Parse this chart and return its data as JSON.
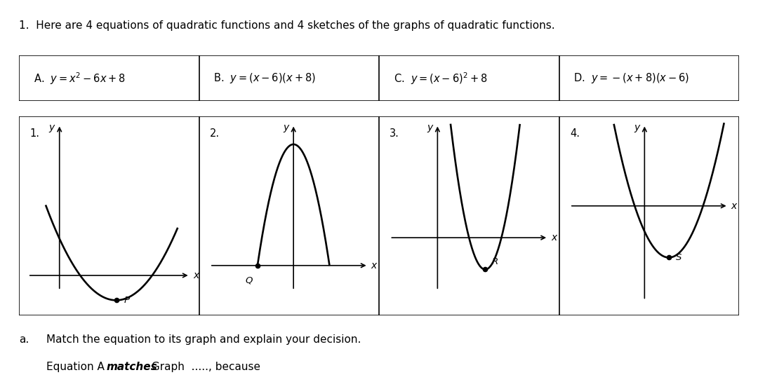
{
  "title_text": "1.  Here are 4 equations of quadratic functions and 4 sketches of the graphs of quadratic functions.",
  "eq_labels": [
    "A.",
    "B.",
    "C.",
    "D."
  ],
  "eq_formulas": [
    "$y = x^2 - 6x + 8$",
    "$y = (x - 6)(x + 8)$",
    "$y = (x - 6)^2 + 8$",
    "$y = -(x + 8)(x - 6)$"
  ],
  "graph_numbers": [
    "1.",
    "2.",
    "3.",
    "4."
  ],
  "point_labels": [
    "P",
    "Q",
    "R",
    "S"
  ],
  "footer_a": "a.",
  "footer_line1": "Match the equation to its graph and explain your decision.",
  "footer_pre": "Equation A ",
  "footer_bold": "matches",
  "footer_post": " Graph  ....., because",
  "bg_color": "#ffffff"
}
